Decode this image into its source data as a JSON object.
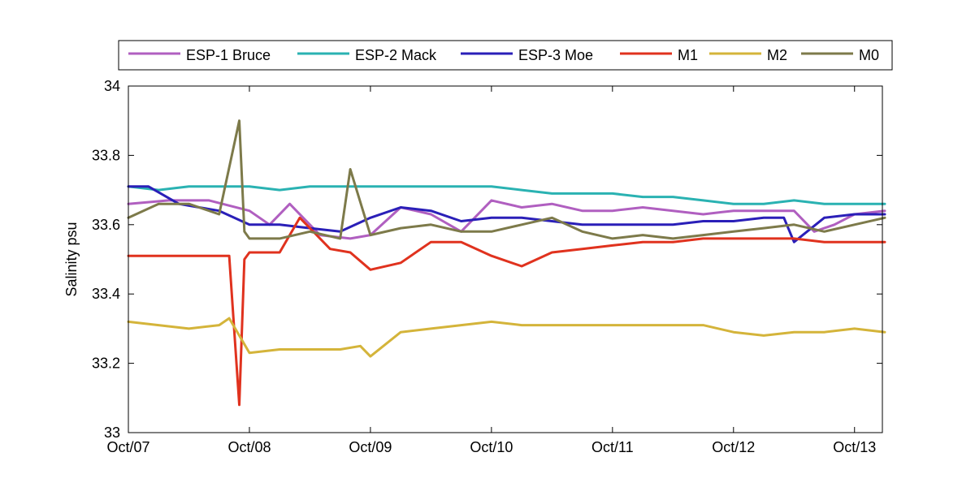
{
  "chart_data": {
    "type": "line",
    "ylabel": "Salinity psu",
    "xlabel": "",
    "title": "",
    "x_start": "Oct/07",
    "x_end_offset_days": 6.23,
    "xlim": [
      "Oct/07",
      "Oct/13"
    ],
    "ylim": [
      33,
      34
    ],
    "x_ticks": [
      "Oct/07",
      "Oct/08",
      "Oct/09",
      "Oct/10",
      "Oct/11",
      "Oct/12",
      "Oct/13"
    ],
    "y_ticks": [
      "33",
      "33.2",
      "33.4",
      "33.6",
      "33.8",
      "34"
    ],
    "legend_position": "top",
    "grid": false,
    "series": [
      {
        "name": "ESP-1 Bruce",
        "color": "#b05fc0",
        "x": [
          "Oct/07 00:00",
          "Oct/07 08:00",
          "Oct/07 16:00",
          "Oct/08 00:00",
          "Oct/08 04:00",
          "Oct/08 08:00",
          "Oct/08 14:00",
          "Oct/08 20:00",
          "Oct/09 00:00",
          "Oct/09 06:00",
          "Oct/09 12:00",
          "Oct/09 18:00",
          "Oct/10 00:00",
          "Oct/10 06:00",
          "Oct/10 12:00",
          "Oct/10 18:00",
          "Oct/11 00:00",
          "Oct/11 06:00",
          "Oct/11 12:00",
          "Oct/11 18:00",
          "Oct/12 00:00",
          "Oct/12 06:00",
          "Oct/12 12:00",
          "Oct/12 16:00",
          "Oct/12 20:00",
          "Oct/13 00:00",
          "Oct/13 06:00"
        ],
        "y": [
          33.66,
          33.67,
          33.67,
          33.64,
          33.6,
          33.66,
          33.57,
          33.56,
          33.57,
          33.65,
          33.63,
          33.58,
          33.67,
          33.65,
          33.66,
          33.64,
          33.64,
          33.65,
          33.64,
          33.63,
          33.64,
          33.64,
          33.64,
          33.58,
          33.6,
          33.63,
          33.64
        ]
      },
      {
        "name": "ESP-2 Mack",
        "color": "#2ab2b2",
        "x": [
          "Oct/07 00:00",
          "Oct/07 06:00",
          "Oct/07 12:00",
          "Oct/07 18:00",
          "Oct/08 00:00",
          "Oct/08 06:00",
          "Oct/08 12:00",
          "Oct/08 18:00",
          "Oct/09 00:00",
          "Oct/09 06:00",
          "Oct/09 12:00",
          "Oct/09 18:00",
          "Oct/10 00:00",
          "Oct/10 06:00",
          "Oct/10 12:00",
          "Oct/10 18:00",
          "Oct/11 00:00",
          "Oct/11 06:00",
          "Oct/11 12:00",
          "Oct/11 18:00",
          "Oct/12 00:00",
          "Oct/12 06:00",
          "Oct/12 12:00",
          "Oct/12 18:00",
          "Oct/13 00:00",
          "Oct/13 06:00"
        ],
        "y": [
          33.71,
          33.7,
          33.71,
          33.71,
          33.71,
          33.7,
          33.71,
          33.71,
          33.71,
          33.71,
          33.71,
          33.71,
          33.71,
          33.7,
          33.69,
          33.69,
          33.69,
          33.68,
          33.68,
          33.67,
          33.66,
          33.66,
          33.67,
          33.66,
          33.66,
          33.66
        ]
      },
      {
        "name": "ESP-3 Moe",
        "color": "#2a1fb8",
        "x": [
          "Oct/07 00:00",
          "Oct/07 04:00",
          "Oct/07 10:00",
          "Oct/07 18:00",
          "Oct/08 00:00",
          "Oct/08 06:00",
          "Oct/08 12:00",
          "Oct/08 18:00",
          "Oct/09 00:00",
          "Oct/09 06:00",
          "Oct/09 12:00",
          "Oct/09 18:00",
          "Oct/10 00:00",
          "Oct/10 06:00",
          "Oct/10 12:00",
          "Oct/10 18:00",
          "Oct/11 00:00",
          "Oct/11 06:00",
          "Oct/11 12:00",
          "Oct/11 18:00",
          "Oct/12 00:00",
          "Oct/12 06:00",
          "Oct/12 10:00",
          "Oct/12 12:00",
          "Oct/12 18:00",
          "Oct/13 00:00",
          "Oct/13 06:00"
        ],
        "y": [
          33.71,
          33.71,
          33.66,
          33.64,
          33.6,
          33.6,
          33.59,
          33.58,
          33.62,
          33.65,
          33.64,
          33.61,
          33.62,
          33.62,
          33.61,
          33.6,
          33.6,
          33.6,
          33.6,
          33.61,
          33.61,
          33.62,
          33.62,
          33.55,
          33.62,
          33.63,
          33.63
        ]
      },
      {
        "name": "M1",
        "color": "#e0321e",
        "x": [
          "Oct/07 00:00",
          "Oct/07 12:00",
          "Oct/07 20:00",
          "Oct/07 22:00",
          "Oct/07 23:00",
          "Oct/08 00:00",
          "Oct/08 06:00",
          "Oct/08 10:00",
          "Oct/08 16:00",
          "Oct/08 20:00",
          "Oct/09 00:00",
          "Oct/09 06:00",
          "Oct/09 12:00",
          "Oct/09 18:00",
          "Oct/10 00:00",
          "Oct/10 06:00",
          "Oct/10 12:00",
          "Oct/10 18:00",
          "Oct/11 00:00",
          "Oct/11 06:00",
          "Oct/11 12:00",
          "Oct/11 18:00",
          "Oct/12 00:00",
          "Oct/12 06:00",
          "Oct/12 12:00",
          "Oct/12 18:00",
          "Oct/13 00:00",
          "Oct/13 06:00"
        ],
        "y": [
          33.51,
          33.51,
          33.51,
          33.08,
          33.5,
          33.52,
          33.52,
          33.62,
          33.53,
          33.52,
          33.47,
          33.49,
          33.55,
          33.55,
          33.51,
          33.48,
          33.52,
          33.53,
          33.54,
          33.55,
          33.55,
          33.56,
          33.56,
          33.56,
          33.56,
          33.55,
          33.55,
          33.55
        ]
      },
      {
        "name": "M2",
        "color": "#d4b43a",
        "x": [
          "Oct/07 00:00",
          "Oct/07 06:00",
          "Oct/07 12:00",
          "Oct/07 18:00",
          "Oct/07 20:00",
          "Oct/08 00:00",
          "Oct/08 06:00",
          "Oct/08 12:00",
          "Oct/08 18:00",
          "Oct/08 22:00",
          "Oct/09 00:00",
          "Oct/09 06:00",
          "Oct/09 12:00",
          "Oct/09 18:00",
          "Oct/10 00:00",
          "Oct/10 06:00",
          "Oct/10 12:00",
          "Oct/10 18:00",
          "Oct/11 00:00",
          "Oct/11 06:00",
          "Oct/11 12:00",
          "Oct/11 18:00",
          "Oct/12 00:00",
          "Oct/12 06:00",
          "Oct/12 12:00",
          "Oct/12 18:00",
          "Oct/13 00:00",
          "Oct/13 06:00"
        ],
        "y": [
          33.32,
          33.31,
          33.3,
          33.31,
          33.33,
          33.23,
          33.24,
          33.24,
          33.24,
          33.25,
          33.22,
          33.29,
          33.3,
          33.31,
          33.32,
          33.31,
          33.31,
          33.31,
          33.31,
          33.31,
          33.31,
          33.31,
          33.29,
          33.28,
          33.29,
          33.29,
          33.3,
          33.29
        ]
      },
      {
        "name": "M0",
        "color": "#7d7a4a",
        "x": [
          "Oct/07 00:00",
          "Oct/07 06:00",
          "Oct/07 12:00",
          "Oct/07 18:00",
          "Oct/07 22:00",
          "Oct/07 23:00",
          "Oct/08 00:00",
          "Oct/08 06:00",
          "Oct/08 12:00",
          "Oct/08 18:00",
          "Oct/08 20:00",
          "Oct/09 00:00",
          "Oct/09 06:00",
          "Oct/09 12:00",
          "Oct/09 18:00",
          "Oct/10 00:00",
          "Oct/10 06:00",
          "Oct/10 12:00",
          "Oct/10 18:00",
          "Oct/11 00:00",
          "Oct/11 06:00",
          "Oct/11 12:00",
          "Oct/11 18:00",
          "Oct/12 00:00",
          "Oct/12 06:00",
          "Oct/12 12:00",
          "Oct/12 18:00",
          "Oct/13 00:00",
          "Oct/13 06:00"
        ],
        "y": [
          33.62,
          33.66,
          33.66,
          33.63,
          33.9,
          33.58,
          33.56,
          33.56,
          33.58,
          33.56,
          33.76,
          33.57,
          33.59,
          33.6,
          33.58,
          33.58,
          33.6,
          33.62,
          33.58,
          33.56,
          33.57,
          33.56,
          33.57,
          33.58,
          33.59,
          33.6,
          33.58,
          33.6,
          33.62
        ]
      }
    ]
  }
}
